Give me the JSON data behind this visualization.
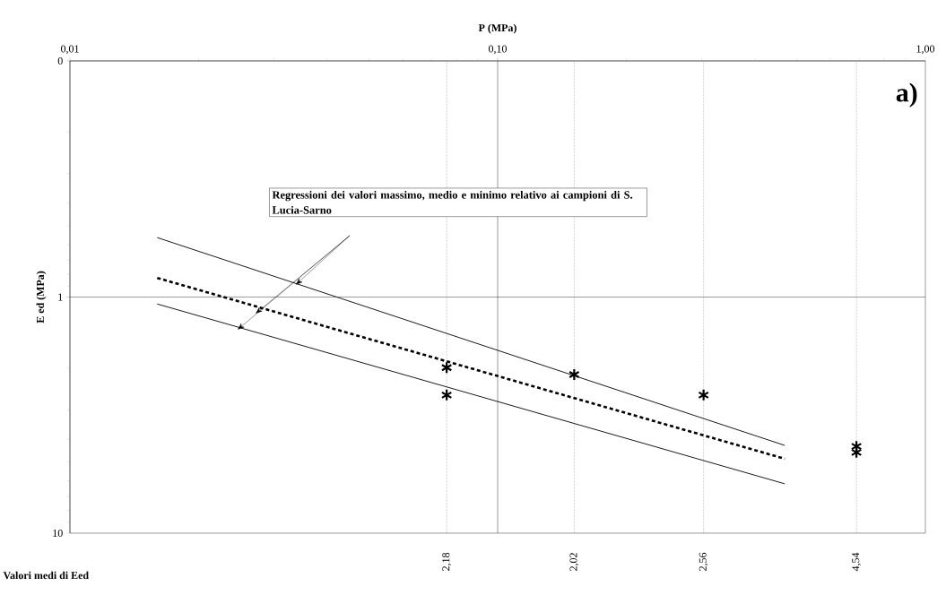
{
  "chart_data": {
    "type": "scatter",
    "xlabel": "P (MPa)",
    "ylabel": "E ed (MPa)",
    "log": "xy",
    "xlim": [
      0.01,
      1.0
    ],
    "ylim": [
      10,
      0.1
    ],
    "xticks": [
      {
        "value": 0.01,
        "label": "0,01"
      },
      {
        "value": 0.1,
        "label": "0,10"
      },
      {
        "value": 1.0,
        "label": "1,00"
      }
    ],
    "yticks": [
      {
        "value": 0.1,
        "label": "0"
      },
      1,
      10
    ],
    "grid": true,
    "marker": "cross",
    "series": [
      {
        "color": "#000000",
        "x": [
          0.076,
          0.076,
          0.151,
          0.303,
          0.69,
          0.69
        ],
        "values": [
          1.99,
          2.6,
          2.13,
          2.6,
          4.29,
          4.55
        ]
      },
      {
        "type": "line",
        "color": "#000000",
        "line_style": "solid",
        "marker": "none",
        "x": [
          0.016,
          0.469
        ],
        "values": [
          0.56,
          4.25
        ]
      },
      {
        "type": "line",
        "color": "#000000",
        "line_style": "dotted",
        "marker": "none",
        "x": [
          0.016,
          0.469
        ],
        "values": [
          0.83,
          4.84
        ]
      },
      {
        "type": "line",
        "color": "#000000",
        "line_style": "solid",
        "marker": "none",
        "x": [
          0.016,
          0.469
        ],
        "values": [
          1.07,
          6.18
        ]
      }
    ],
    "ref_lines": [
      {
        "axis": "x",
        "value": 0.076,
        "line_style": "dotted"
      },
      {
        "axis": "x",
        "value": 0.151,
        "line_style": "dotted"
      },
      {
        "axis": "x",
        "value": 0.303,
        "line_style": "dotted"
      },
      {
        "axis": "x",
        "value": 0.69,
        "line_style": "dotted"
      }
    ],
    "annotations": [
      "a)",
      "Regressioni dei valori massimo, medio e minimo relativo ai campioni di S. Lucia-Sarno",
      "Valori medi di Eed",
      "2,18",
      "2,02",
      "2,56",
      "4,54"
    ]
  }
}
